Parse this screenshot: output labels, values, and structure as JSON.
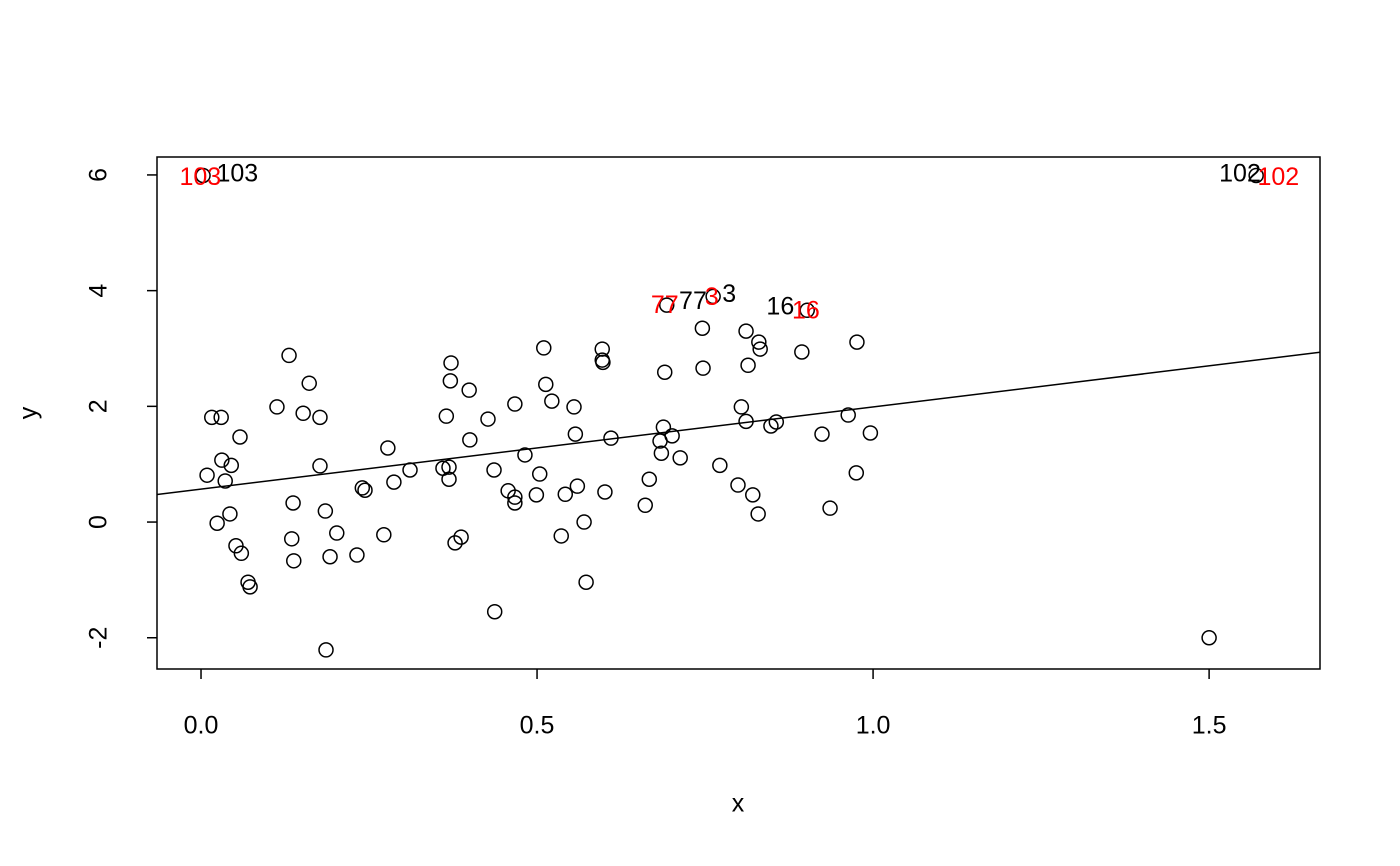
{
  "chart_data": {
    "type": "scatter",
    "xlabel": "x",
    "ylabel": "y",
    "xlim": [
      -0.0655,
      1.665
    ],
    "ylim": [
      -2.54,
      6.31
    ],
    "xticks": [
      {
        "value": 0,
        "label": "0.0"
      },
      0.5,
      {
        "value": 1,
        "label": "1.0"
      },
      1.5
    ],
    "yticks": [
      -2,
      0,
      2,
      4,
      6
    ],
    "color": "#000000",
    "x": [
      0.009,
      0.016,
      0.03,
      0.024,
      0.031,
      0.036,
      0.045,
      0.043,
      0.052,
      0.058,
      0.06,
      0.07,
      0.073,
      0.113,
      0.131,
      0.135,
      0.137,
      0.138,
      0.152,
      0.161,
      0.177,
      0.177,
      0.185,
      0.186,
      0.192,
      0.202,
      0.232,
      0.24,
      0.244,
      0.272,
      0.278,
      0.287,
      0.311,
      0.36,
      0.365,
      0.369,
      0.369,
      0.371,
      0.372,
      0.378,
      0.387,
      0.399,
      0.4,
      0.427,
      0.436,
      0.437,
      0.457,
      0.467,
      0.467,
      0.467,
      0.482,
      0.499,
      0.504,
      0.51,
      0.513,
      0.522,
      0.536,
      0.542,
      0.555,
      0.557,
      0.56,
      0.57,
      0.573,
      0.597,
      0.597,
      0.598,
      0.601,
      0.61,
      0.661,
      0.667,
      0.683,
      0.685,
      0.688,
      0.69,
      0.693,
      0.701,
      0.713,
      0.746,
      0.747,
      0.772,
      0.799,
      0.804,
      0.811,
      0.811,
      0.814,
      0.821,
      0.829,
      0.83,
      0.832,
      0.848,
      0.856,
      0.894,
      0.902,
      0.924,
      0.936,
      0.963,
      0.975,
      0.976,
      0.996,
      1.5,
      0.003,
      1.57,
      0.762
    ],
    "y": [
      0.81,
      1.81,
      1.81,
      -0.02,
      1.07,
      0.71,
      0.98,
      0.14,
      -0.41,
      1.47,
      -0.54,
      -1.04,
      -1.12,
      1.99,
      2.88,
      -0.29,
      0.33,
      -0.67,
      1.88,
      2.4,
      1.81,
      0.97,
      0.19,
      -2.21,
      -0.6,
      -0.19,
      -0.57,
      0.59,
      0.55,
      -0.22,
      1.28,
      0.69,
      0.9,
      0.93,
      1.83,
      0.95,
      0.74,
      2.44,
      2.75,
      -0.36,
      -0.26,
      2.28,
      1.42,
      1.78,
      0.9,
      -1.55,
      0.54,
      2.04,
      0.43,
      0.33,
      1.16,
      0.47,
      0.83,
      3.01,
      2.38,
      2.09,
      -0.24,
      0.48,
      1.99,
      1.52,
      0.62,
      0,
      -1.04,
      2.99,
      2.8,
      2.76,
      0.52,
      1.45,
      0.29,
      0.74,
      1.4,
      1.19,
      1.64,
      2.59,
      3.75,
      1.49,
      1.11,
      3.35,
      2.66,
      0.98,
      0.64,
      1.99,
      3.3,
      1.74,
      2.71,
      0.47,
      0.14,
      3.11,
      2.99,
      1.66,
      1.73,
      2.94,
      3.66,
      1.52,
      0.24,
      1.85,
      0.85,
      3.11,
      1.54,
      -2.0,
      5.99,
      5.99,
      3.9
    ],
    "line": {
      "intercept": 0.57,
      "slope": 1.42
    },
    "annotations": [
      {
        "text": "103",
        "x": 0.054,
        "y": 6.0,
        "color": "#000000"
      },
      {
        "text": "103",
        "x": -0.001,
        "y": 5.94,
        "color": "#ff0000"
      },
      {
        "text": "102",
        "x": 1.546,
        "y": 6.0,
        "color": "#000000"
      },
      {
        "text": "102",
        "x": 1.603,
        "y": 5.94,
        "color": "#ff0000"
      },
      {
        "text": "77",
        "x": 0.732,
        "y": 3.8,
        "color": "#000000"
      },
      {
        "text": "3",
        "x": 0.786,
        "y": 3.92,
        "color": "#000000"
      },
      {
        "text": "77",
        "x": 0.69,
        "y": 3.73,
        "color": "#ff0000"
      },
      {
        "text": "3",
        "x": 0.76,
        "y": 3.87,
        "color": "#ff0000"
      },
      {
        "text": "16",
        "x": 0.862,
        "y": 3.7,
        "color": "#000000"
      },
      {
        "text": "16",
        "x": 0.9,
        "y": 3.63,
        "color": "#ff0000"
      }
    ]
  }
}
